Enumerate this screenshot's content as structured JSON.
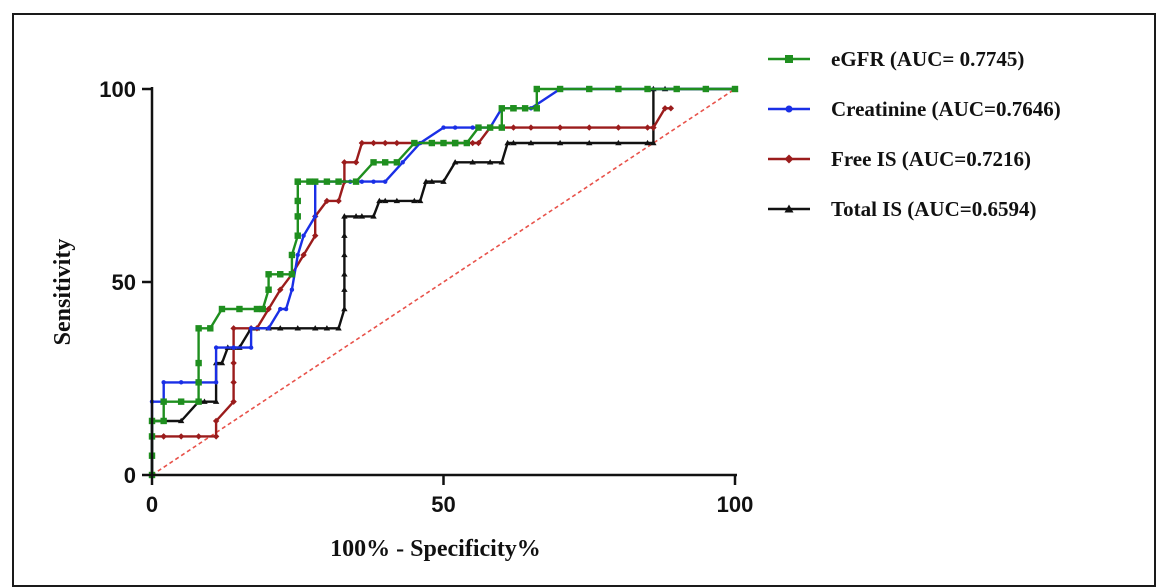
{
  "chart_data": {
    "type": "line",
    "title": "",
    "xlabel": "100% - Specificity%",
    "ylabel": "Sensitivity",
    "xlim": [
      0,
      100
    ],
    "ylim": [
      0,
      100
    ],
    "x_ticks": [
      "0",
      "50",
      "100"
    ],
    "y_ticks": [
      "0",
      "50",
      "100"
    ],
    "grid": false,
    "legend_position": "top-right",
    "reference_line": {
      "x": [
        0,
        100
      ],
      "y": [
        0,
        100
      ],
      "color": "#e8524a",
      "style": "dashed"
    },
    "series": [
      {
        "name": "eGFR (AUC= 0.7745)",
        "color": "#1f8f1f",
        "marker": "square",
        "x": [
          0,
          0,
          0,
          0,
          2,
          2,
          5,
          8,
          8,
          8,
          8,
          10,
          12,
          15,
          18,
          19,
          20,
          20,
          22,
          22,
          24,
          24,
          25,
          25,
          25,
          25,
          25,
          27,
          28,
          30,
          32,
          35,
          38,
          40,
          42,
          45,
          48,
          50,
          52,
          52,
          54,
          56,
          58,
          60,
          60,
          62,
          62,
          64,
          66,
          66,
          70,
          75,
          80,
          85,
          90,
          95,
          100
        ],
        "y": [
          0,
          5,
          10,
          14,
          14,
          19,
          19,
          19,
          24,
          29,
          38,
          38,
          43,
          43,
          43,
          43,
          48,
          52,
          52,
          52,
          52,
          57,
          62,
          67,
          71,
          76,
          76,
          76,
          76,
          76,
          76,
          76,
          81,
          81,
          81,
          86,
          86,
          86,
          86,
          86,
          86,
          90,
          90,
          90,
          95,
          95,
          95,
          95,
          95,
          100,
          100,
          100,
          100,
          100,
          100,
          100,
          100
        ]
      },
      {
        "name": "Creatinine (AUC=0.7646)",
        "color": "#1a2fe6",
        "marker": "circle",
        "x": [
          0,
          0,
          2,
          2,
          5,
          8,
          11,
          11,
          14,
          17,
          17,
          20,
          22,
          23,
          24,
          25,
          26,
          28,
          28,
          30,
          32,
          34,
          36,
          38,
          40,
          43,
          46,
          50,
          52,
          55,
          58,
          60,
          62,
          65,
          70,
          75,
          80,
          85,
          90,
          95,
          100
        ],
        "y": [
          0,
          19,
          19,
          24,
          24,
          24,
          24,
          33,
          33,
          33,
          38,
          38,
          43,
          43,
          48,
          57,
          62,
          67,
          76,
          76,
          76,
          76,
          76,
          76,
          76,
          81,
          86,
          90,
          90,
          90,
          90,
          95,
          95,
          95,
          100,
          100,
          100,
          100,
          100,
          100,
          100
        ],
        "markers": false
      },
      {
        "name": "Free IS (AUC=0.7216)",
        "color": "#9b1c1c",
        "marker": "diamond",
        "x": [
          0,
          0,
          0,
          2,
          2,
          5,
          8,
          11,
          11,
          14,
          14,
          14,
          14,
          17,
          18,
          20,
          22,
          24,
          26,
          28,
          28,
          30,
          32,
          33,
          33,
          35,
          36,
          38,
          40,
          42,
          45,
          48,
          50,
          52,
          55,
          56,
          58,
          60,
          62,
          65,
          70,
          75,
          80,
          85,
          86,
          86,
          88,
          89
        ],
        "y": [
          0,
          5,
          10,
          10,
          10,
          10,
          10,
          10,
          14,
          19,
          24,
          29,
          38,
          38,
          38,
          43,
          48,
          52,
          57,
          62,
          67,
          71,
          71,
          76,
          81,
          81,
          86,
          86,
          86,
          86,
          86,
          86,
          86,
          86,
          86,
          86,
          90,
          90,
          90,
          90,
          90,
          90,
          90,
          90,
          90,
          90,
          95,
          95
        ],
        "markers": false
      },
      {
        "name": "Total IS (AUC=0.6594)",
        "color": "#111111",
        "marker": "triangle",
        "x": [
          0,
          0,
          2,
          5,
          8,
          9,
          11,
          11,
          12,
          13,
          14,
          15,
          17,
          18,
          20,
          22,
          25,
          28,
          30,
          32,
          33,
          33,
          33,
          33,
          33,
          33,
          35,
          36,
          38,
          39,
          40,
          42,
          45,
          46,
          47,
          48,
          50,
          52,
          55,
          58,
          60,
          61,
          62,
          65,
          70,
          75,
          80,
          85,
          86,
          86,
          88,
          90,
          95,
          100
        ],
        "y": [
          0,
          14,
          14,
          14,
          19,
          19,
          19,
          29,
          29,
          33,
          33,
          33,
          38,
          38,
          38,
          38,
          38,
          38,
          38,
          38,
          43,
          48,
          52,
          57,
          62,
          67,
          67,
          67,
          67,
          71,
          71,
          71,
          71,
          71,
          76,
          76,
          76,
          81,
          81,
          81,
          81,
          86,
          86,
          86,
          86,
          86,
          86,
          86,
          86,
          100,
          100,
          100,
          100,
          100
        ],
        "markers": false
      }
    ]
  }
}
